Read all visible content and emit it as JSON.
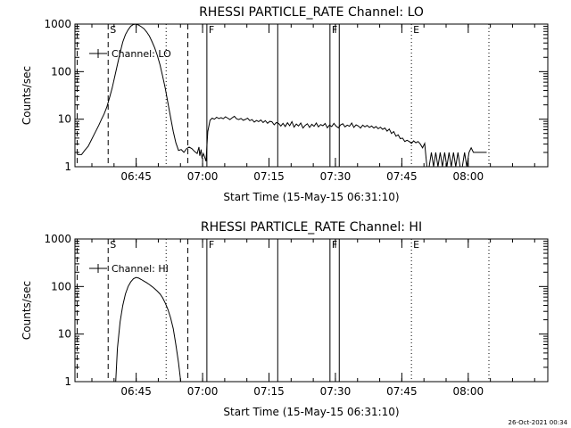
{
  "timestamp": "26-Oct-2021 00:34",
  "chart_data": [
    {
      "type": "line",
      "title": "RHESSI PARTICLE_RATE Channel: LO",
      "xlabel": "Start Time (15-May-15 06:31:10)",
      "ylabel": "Counts/sec",
      "x_unit": "minutes after 06:31:10",
      "xlim": [
        0,
        106.8
      ],
      "ylim": [
        1,
        1000
      ],
      "yscale": "log",
      "x_ticks": [
        {
          "label": "06:45",
          "x": 13.83
        },
        {
          "label": "07:00",
          "x": 28.83
        },
        {
          "label": "07:15",
          "x": 43.83
        },
        {
          "label": "07:30",
          "x": 58.83
        },
        {
          "label": "07:45",
          "x": 73.83
        },
        {
          "label": "08:00",
          "x": 88.83
        }
      ],
      "y_ticks": [
        {
          "label": "1",
          "y": 1
        },
        {
          "label": "10",
          "y": 10
        },
        {
          "label": "100",
          "y": 100
        },
        {
          "label": "1000",
          "y": 1000
        }
      ],
      "legend": {
        "label": "Channel: LO",
        "position": "top-left"
      },
      "markers": [
        {
          "x": 0.5,
          "style": "dashed",
          "label": ""
        },
        {
          "x": 7.5,
          "style": "dashed",
          "label": "S"
        },
        {
          "x": 25.5,
          "style": "dashed",
          "label": ""
        },
        {
          "x": 20.6,
          "style": "dotted",
          "label": ""
        },
        {
          "x": 45.8,
          "style": "solid",
          "label": ""
        },
        {
          "x": 59.7,
          "style": "solid",
          "label": ""
        },
        {
          "x": 29.8,
          "style": "solid",
          "label": "F"
        },
        {
          "x": 57.6,
          "style": "solid",
          "label": "F"
        },
        {
          "x": 76.0,
          "style": "dotted",
          "label": "E"
        },
        {
          "x": 93.5,
          "style": "dotted",
          "label": ""
        }
      ],
      "series": [
        {
          "name": "Channel: LO",
          "x": [
            0.5,
            1.5,
            2.2,
            3.0,
            3.6,
            4.2,
            4.8,
            5.4,
            6.0,
            6.6,
            7.2,
            7.8,
            8.4,
            9.0,
            9.6,
            10.2,
            10.8,
            11.4,
            12.0,
            12.6,
            13.2,
            13.8,
            14.4,
            15.0,
            15.6,
            16.2,
            16.8,
            17.4,
            18.0,
            18.6,
            19.2,
            19.8,
            20.4,
            21.0,
            21.6,
            22.2,
            22.8,
            23.4,
            24.0,
            24.6,
            25.2,
            25.8,
            26.4,
            27.0,
            27.6,
            28.0,
            28.2,
            28.5,
            28.7,
            29.0,
            29.3,
            29.6,
            30.0,
            30.5,
            31.0,
            31.5,
            32.0,
            32.5,
            33.0,
            33.5,
            34.0,
            34.5,
            35.0,
            35.5,
            36.0,
            36.5,
            37.0,
            37.5,
            38.0,
            38.5,
            39.0,
            39.5,
            40.0,
            40.5,
            41.0,
            41.5,
            42.0,
            42.5,
            43.0,
            43.5,
            44.0,
            44.5,
            45.0,
            45.5,
            46.0,
            46.5,
            47.0,
            47.5,
            48.0,
            48.5,
            49.0,
            49.5,
            50.0,
            50.5,
            51.0,
            51.5,
            52.0,
            52.5,
            53.0,
            53.5,
            54.0,
            54.5,
            55.0,
            55.5,
            56.0,
            56.5,
            57.0,
            57.5,
            58.0,
            58.5,
            59.0,
            59.5,
            60.0,
            60.5,
            61.0,
            61.5,
            62.0,
            62.5,
            63.0,
            63.5,
            64.0,
            64.5,
            65.0,
            65.5,
            66.0,
            66.5,
            67.0,
            67.5,
            68.0,
            68.5,
            69.0,
            69.5,
            70.0,
            70.5,
            71.0,
            71.5,
            72.0,
            72.5,
            73.0,
            73.5,
            74.0,
            74.5,
            75.0,
            75.5,
            76.0,
            76.5,
            77.0,
            77.5,
            78.0,
            78.5,
            79.0,
            79.5,
            80.0,
            80.5,
            81.0,
            81.5,
            82.0,
            82.5,
            83.0,
            83.5,
            84.0,
            84.5,
            85.0,
            85.5,
            86.0,
            86.5,
            87.0,
            87.5,
            88.0,
            88.5,
            89.0,
            89.5,
            90.0,
            90.5,
            91.0,
            91.5,
            92.0,
            92.5,
            93.0
          ],
          "y": [
            1.8,
            1.8,
            2.2,
            2.7,
            3.5,
            4.5,
            5.8,
            7.5,
            10,
            13,
            18,
            28,
            45,
            80,
            140,
            250,
            420,
            600,
            760,
            900,
            980,
            1000,
            950,
            880,
            800,
            680,
            560,
            430,
            320,
            220,
            140,
            80,
            45,
            22,
            11,
            5.5,
            3.2,
            2.2,
            2.3,
            2.0,
            2.4,
            2.6,
            2.4,
            2.1,
            1.9,
            2.6,
            1.7,
            2.3,
            1.5,
            1.9,
            1.6,
            1.3,
            5.5,
            9.5,
            10.5,
            10,
            11,
            10.3,
            10.8,
            10.2,
            11.2,
            10.5,
            9.8,
            10.7,
            11.5,
            10.2,
            9.8,
            10.4,
            9.5,
            9.9,
            10.5,
            9.3,
            9.8,
            8.7,
            9.4,
            8.9,
            9.6,
            8.5,
            9.3,
            8.2,
            9.0,
            8.8,
            7.6,
            8.5,
            8.1,
            7.2,
            8.2,
            7.0,
            8.4,
            7.3,
            8.9,
            6.8,
            7.9,
            7.2,
            8.3,
            6.5,
            7.4,
            8.0,
            6.7,
            7.8,
            7.1,
            8.3,
            6.9,
            7.7,
            7.3,
            8.1,
            6.6,
            7.5,
            7.0,
            8.2,
            7.1,
            6.6,
            7.6,
            8.0,
            6.9,
            7.5,
            7.1,
            8.3,
            6.7,
            7.6,
            7.2,
            6.5,
            7.5,
            6.9,
            7.4,
            6.7,
            7.2,
            6.5,
            7.0,
            6.3,
            6.8,
            6.1,
            6.5,
            5.6,
            6.2,
            5.0,
            5.5,
            4.4,
            4.7,
            3.9,
            4.0,
            3.4,
            3.6,
            3.4,
            3.1,
            3.5,
            3.2,
            3.4,
            3.0,
            2.5,
            3.1,
            1.0,
            1.0,
            2.0,
            1.0,
            2.0,
            1.0,
            2.0,
            1.0,
            2.0,
            1.0,
            2.0,
            1.0,
            2.0,
            1.0,
            2.0,
            1.0,
            1.0,
            2.0,
            1.0,
            2.0,
            2.5,
            2.0,
            2.0,
            2.0,
            2.0,
            2.0,
            2.0,
            2.0
          ]
        }
      ]
    },
    {
      "type": "line",
      "title": "RHESSI PARTICLE_RATE Channel: HI",
      "xlabel": "Start Time (15-May-15 06:31:10)",
      "ylabel": "Counts/sec",
      "x_unit": "minutes after 06:31:10",
      "xlim": [
        0,
        106.8
      ],
      "ylim": [
        1,
        1000
      ],
      "yscale": "log",
      "x_ticks": [
        {
          "label": "06:45",
          "x": 13.83
        },
        {
          "label": "07:00",
          "x": 28.83
        },
        {
          "label": "07:15",
          "x": 43.83
        },
        {
          "label": "07:30",
          "x": 58.83
        },
        {
          "label": "07:45",
          "x": 73.83
        },
        {
          "label": "08:00",
          "x": 88.83
        }
      ],
      "y_ticks": [
        {
          "label": "1",
          "y": 1
        },
        {
          "label": "10",
          "y": 10
        },
        {
          "label": "100",
          "y": 100
        },
        {
          "label": "1000",
          "y": 1000
        }
      ],
      "legend": {
        "label": "Channel: HI",
        "position": "top-left"
      },
      "markers": [
        {
          "x": 0.5,
          "style": "dashed",
          "label": ""
        },
        {
          "x": 7.5,
          "style": "dashed",
          "label": "S"
        },
        {
          "x": 25.5,
          "style": "dashed",
          "label": ""
        },
        {
          "x": 20.6,
          "style": "dotted",
          "label": ""
        },
        {
          "x": 45.8,
          "style": "solid",
          "label": ""
        },
        {
          "x": 59.7,
          "style": "solid",
          "label": ""
        },
        {
          "x": 29.8,
          "style": "solid",
          "label": "F"
        },
        {
          "x": 57.6,
          "style": "solid",
          "label": "F"
        },
        {
          "x": 76.0,
          "style": "dotted",
          "label": "E"
        },
        {
          "x": 93.5,
          "style": "dotted",
          "label": ""
        }
      ],
      "series": [
        {
          "name": "Channel: HI",
          "x": [
            9.2,
            9.6,
            10.2,
            10.8,
            11.4,
            12.0,
            12.6,
            13.2,
            13.8,
            14.4,
            15.0,
            15.6,
            16.2,
            16.8,
            17.4,
            18.0,
            18.6,
            19.2,
            19.8,
            20.4,
            21.0,
            21.6,
            22.2,
            22.8,
            23.4,
            23.9
          ],
          "y": [
            1,
            5,
            18,
            40,
            70,
            100,
            125,
            145,
            155,
            150,
            140,
            130,
            120,
            110,
            100,
            90,
            80,
            70,
            58,
            45,
            33,
            22,
            13,
            6,
            2.5,
            1
          ]
        }
      ]
    }
  ]
}
